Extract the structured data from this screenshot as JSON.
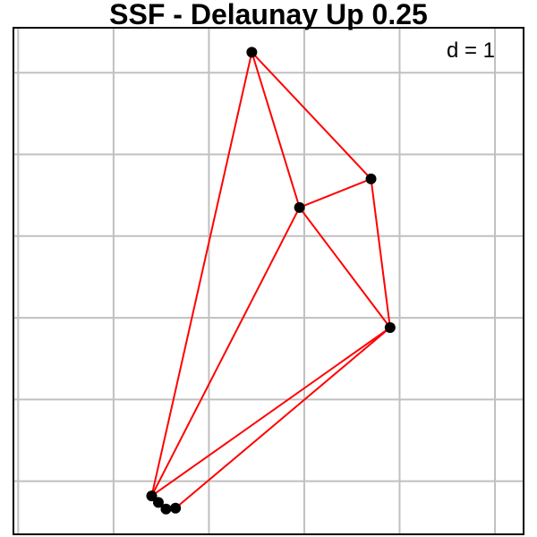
{
  "title": "SSF -  Delaunay  Up  0.25",
  "annotation": "d = 1",
  "colors": {
    "edge": "#ff0000",
    "point": "#000000",
    "grid": "#c0c0c0",
    "frame": "#000000",
    "background": "#ffffff"
  },
  "grid": true,
  "points": [
    {
      "id": "p1",
      "x": 2.45,
      "y": 5.25
    },
    {
      "id": "p2",
      "x": 3.7,
      "y": 3.7
    },
    {
      "id": "p3",
      "x": 2.95,
      "y": 3.35
    },
    {
      "id": "p4",
      "x": 3.9,
      "y": 1.88
    },
    {
      "id": "p5",
      "x": 1.4,
      "y": -0.18
    },
    {
      "id": "p6",
      "x": 1.47,
      "y": -0.26
    },
    {
      "id": "p7",
      "x": 1.55,
      "y": -0.34
    },
    {
      "id": "p8",
      "x": 1.65,
      "y": -0.33
    }
  ],
  "edges": [
    [
      "p1",
      "p2"
    ],
    [
      "p1",
      "p3"
    ],
    [
      "p1",
      "p5"
    ],
    [
      "p2",
      "p3"
    ],
    [
      "p2",
      "p4"
    ],
    [
      "p3",
      "p4"
    ],
    [
      "p3",
      "p5"
    ],
    [
      "p4",
      "p5"
    ],
    [
      "p4",
      "p8"
    ],
    [
      "p5",
      "p6"
    ],
    [
      "p6",
      "p7"
    ],
    [
      "p7",
      "p8"
    ]
  ],
  "axes": {
    "xlim": [
      -0.05,
      5.3
    ],
    "ylim": [
      -0.65,
      5.55
    ],
    "grid_x": [
      0,
      1,
      2,
      3,
      4,
      5
    ],
    "grid_y": [
      0,
      1,
      2,
      3,
      4,
      5
    ]
  }
}
